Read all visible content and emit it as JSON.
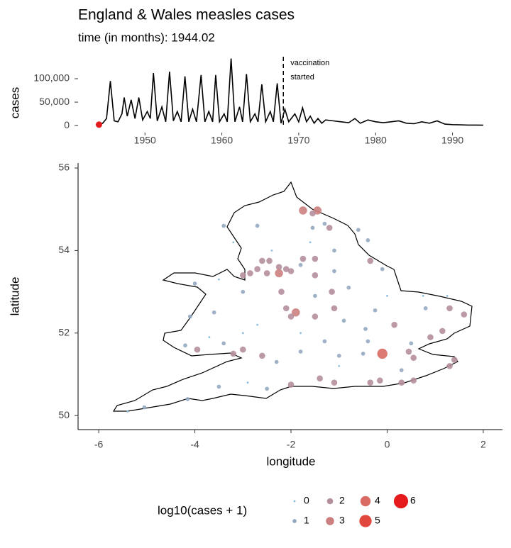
{
  "chart_data": [
    {
      "type": "line",
      "title": "England & Wales measles cases",
      "subtitle": "time (in months): 1944.02",
      "ylabel": "cases",
      "x": [
        1944.0,
        1944.5,
        1945.0,
        1945.5,
        1946.0,
        1946.5,
        1947.0,
        1947.3,
        1947.7,
        1948.2,
        1948.7,
        1949.2,
        1949.7,
        1950.3,
        1950.7,
        1951.1,
        1951.6,
        1952.2,
        1952.7,
        1953.2,
        1953.7,
        1954.2,
        1954.7,
        1955.2,
        1955.7,
        1956.2,
        1956.7,
        1957.3,
        1957.8,
        1958.3,
        1958.8,
        1959.2,
        1959.7,
        1960.3,
        1960.7,
        1961.2,
        1961.7,
        1962.3,
        1962.7,
        1963.2,
        1963.7,
        1964.3,
        1964.7,
        1965.2,
        1965.7,
        1966.3,
        1966.7,
        1967.2,
        1967.7,
        1968.2,
        1968.7,
        1969.5,
        1970.0,
        1970.5,
        1971.0,
        1971.5,
        1972.0,
        1972.5,
        1973.0,
        1973.5,
        1974.5,
        1975.5,
        1976.5,
        1977.3,
        1978.0,
        1979.0,
        1980.0,
        1981.0,
        1982.0,
        1983.0,
        1984.0,
        1985.0,
        1986.0,
        1987.0,
        1988.0,
        1989.0,
        1990.0,
        1991.0,
        1992.0,
        1993.0,
        1994.0
      ],
      "series": [
        {
          "color": "#000000",
          "values": [
            2000,
            5000,
            15000,
            95000,
            10000,
            8000,
            25000,
            60000,
            20000,
            55000,
            15000,
            60000,
            12000,
            30000,
            15000,
            112000,
            10000,
            40000,
            8000,
            115000,
            10000,
            30000,
            8000,
            105000,
            8000,
            35000,
            8000,
            108000,
            8000,
            30000,
            8000,
            108000,
            8000,
            25000,
            8000,
            143000,
            8000,
            40000,
            8000,
            110000,
            8000,
            25000,
            8000,
            88000,
            8000,
            30000,
            8000,
            90000,
            5000,
            35000,
            8000,
            25000,
            8000,
            38000,
            8000,
            20000,
            5000,
            15000,
            5000,
            12000,
            10000,
            8000,
            6000,
            15000,
            5000,
            12000,
            8000,
            6000,
            8000,
            10000,
            5000,
            4000,
            8000,
            5000,
            10000,
            3000,
            2000,
            1500,
            1000,
            1000,
            800
          ]
        }
      ],
      "highlight": {
        "x": 1944.02,
        "value": 2000,
        "color": "#e41a1c"
      },
      "vline": {
        "x": 1968,
        "label": [
          "vaccination",
          "started"
        ]
      },
      "xlim": [
        1941.3,
        1996.5
      ],
      "ylim": [
        -15000,
        147000
      ],
      "xticks": [
        1950,
        1960,
        1970,
        1980,
        1990
      ],
      "yticks": [
        0,
        {
          "value": 50000,
          "label": "50,000"
        },
        {
          "value": 100000,
          "label": "100,000"
        }
      ]
    },
    {
      "type": "scatter",
      "xlabel": "longitude",
      "ylabel": "latitude",
      "xlim": [
        -6.43,
        2.4
      ],
      "ylim": [
        49.66,
        56.12
      ],
      "xticks": [
        -6,
        -4,
        -2,
        0,
        2
      ],
      "yticks": [
        50,
        52,
        54,
        56
      ],
      "x": [
        -1.75,
        -1.45,
        -1.55,
        -3.4,
        -2.7,
        -1.2,
        -1.55,
        -1.3,
        -0.6,
        -0.4,
        -1.1,
        -1.5,
        -1.75,
        -2.6,
        -2.45,
        -2.25,
        -2.1,
        -2.7,
        -3.0,
        -2.85,
        -2.5,
        -2.25,
        -2.0,
        -1.8,
        -1.5,
        -1.1,
        -0.35,
        -0.1,
        -1.15,
        -1.5,
        -2.2,
        -2.1,
        -1.9,
        -2.0,
        -1.5,
        -1.1,
        -0.9,
        -0.25,
        0.15,
        -0.45,
        0.8,
        1.3,
        1.15,
        0.9,
        1.6,
        0.5,
        0.45,
        -0.1,
        -0.5,
        -1.0,
        -1.8,
        -2.6,
        -3.2,
        -3.0,
        -3.95,
        -4.2,
        -3.4,
        -1.4,
        -1.1,
        -0.15,
        -0.35,
        0.3,
        0.55,
        1.3,
        1.4,
        0.55,
        -2.0,
        -2.5,
        -3.5,
        -4.15,
        -5.05,
        -3.6,
        -4.1,
        -4.0,
        -3.0,
        -3.5,
        -5.4,
        -3.0,
        -2.7,
        -1.3,
        -1.8,
        -0.4,
        -2.3,
        -2.9,
        -1.6,
        -0.8,
        0.0,
        -3.7,
        -1.0,
        0.3,
        0.75,
        1.25,
        -2.4,
        -3.2
      ],
      "values": [
        54.97,
        54.97,
        54.9,
        54.6,
        54.6,
        54.55,
        54.55,
        54.65,
        54.5,
        54.25,
        54.0,
        53.8,
        53.8,
        53.75,
        53.75,
        53.6,
        53.55,
        53.55,
        53.4,
        53.45,
        53.45,
        53.45,
        53.5,
        53.65,
        53.4,
        53.5,
        53.75,
        53.55,
        53.0,
        52.9,
        53.0,
        52.6,
        52.5,
        52.4,
        52.4,
        52.6,
        52.3,
        52.55,
        52.2,
        52.1,
        52.6,
        52.6,
        52.05,
        51.9,
        52.45,
        51.75,
        51.55,
        51.5,
        51.5,
        51.45,
        51.55,
        51.45,
        51.5,
        51.6,
        51.6,
        51.7,
        51.75,
        50.9,
        50.8,
        50.85,
        50.8,
        50.8,
        50.85,
        51.2,
        51.35,
        51.4,
        50.75,
        50.65,
        50.7,
        50.4,
        50.2,
        52.5,
        52.4,
        53.2,
        53.0,
        53.3,
        50.1,
        52.0,
        52.2,
        51.8,
        52.0,
        51.8,
        51.3,
        50.8,
        54.2,
        53.1,
        52.9,
        51.9,
        51.2,
        51.1,
        52.9,
        52.9,
        54.0,
        54.2
      ],
      "sizes": [
        3,
        3,
        2,
        1,
        1,
        2,
        1,
        1,
        1,
        1,
        1,
        2,
        2,
        2,
        2,
        2,
        2,
        2,
        2,
        2,
        2,
        3,
        2,
        1,
        2,
        1,
        2,
        1,
        2,
        1,
        2,
        2,
        3,
        2,
        2,
        2,
        1,
        1,
        2,
        1,
        1,
        2,
        2,
        2,
        2,
        1,
        2,
        4,
        1,
        1,
        1,
        2,
        2,
        2,
        2,
        1,
        1,
        2,
        2,
        2,
        2,
        2,
        2,
        2,
        2,
        2,
        2,
        1,
        1,
        1,
        1,
        1,
        1,
        1,
        1,
        0,
        0,
        0,
        0,
        1,
        0,
        1,
        1,
        0,
        0,
        1,
        0,
        0,
        0,
        1,
        0,
        0,
        0,
        0
      ],
      "legend": {
        "title": "log10(cases + 1)",
        "levels": [
          0,
          1,
          2,
          3,
          4,
          5,
          6
        ],
        "colors": [
          "#7fb8d8",
          "#93a8c0",
          "#b58e9c",
          "#cc7f7f",
          "#d96a64",
          "#e0483e",
          "#e41a1c"
        ]
      }
    }
  ]
}
